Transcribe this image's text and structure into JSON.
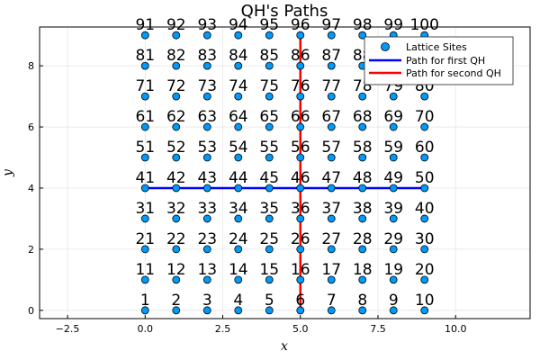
{
  "chart_data": {
    "type": "scatter",
    "title": "QH's Paths",
    "xlabel": "x",
    "ylabel": "y",
    "xlim": [
      -3.4,
      12.4
    ],
    "ylim": [
      -0.27,
      9.27
    ],
    "xticks": [
      -2.5,
      0.0,
      2.5,
      5.0,
      7.5,
      10.0
    ],
    "xtick_labels": [
      "−2.5",
      "0.0",
      "2.5",
      "5.0",
      "7.5",
      "10.0"
    ],
    "yticks": [
      0,
      2,
      4,
      6,
      8
    ],
    "ytick_labels": [
      "0",
      "2",
      "4",
      "6",
      "8"
    ],
    "grid": true,
    "legend_position": "top-right",
    "lattice": {
      "name": "Lattice Sites",
      "color": "#009AFA",
      "x_values": [
        0,
        1,
        2,
        3,
        4,
        5,
        6,
        7,
        8,
        9
      ],
      "y_values": [
        0,
        1,
        2,
        3,
        4,
        5,
        6,
        7,
        8,
        9
      ],
      "site_labels": [
        "1",
        "2",
        "3",
        "4",
        "5",
        "6",
        "7",
        "8",
        "9",
        "10",
        "11",
        "12",
        "13",
        "14",
        "15",
        "16",
        "17",
        "18",
        "19",
        "20",
        "21",
        "22",
        "23",
        "24",
        "25",
        "26",
        "27",
        "28",
        "29",
        "30",
        "31",
        "32",
        "33",
        "34",
        "35",
        "36",
        "37",
        "38",
        "39",
        "40",
        "41",
        "42",
        "43",
        "44",
        "45",
        "46",
        "47",
        "48",
        "49",
        "50",
        "51",
        "52",
        "53",
        "54",
        "55",
        "56",
        "57",
        "58",
        "59",
        "60",
        "61",
        "62",
        "63",
        "64",
        "65",
        "66",
        "67",
        "68",
        "69",
        "70",
        "71",
        "72",
        "73",
        "74",
        "75",
        "76",
        "77",
        "78",
        "79",
        "80",
        "81",
        "82",
        "83",
        "84",
        "85",
        "86",
        "87",
        "88",
        "89",
        "90",
        "91",
        "92",
        "93",
        "94",
        "95",
        "96",
        "97",
        "98",
        "99",
        "100"
      ]
    },
    "series": [
      {
        "name": "Path for first QH",
        "color": "#0000FF",
        "points": [
          [
            0,
            4
          ],
          [
            9,
            4
          ]
        ]
      },
      {
        "name": "Path for second QH",
        "color": "#FF0000",
        "points": [
          [
            5,
            0
          ],
          [
            5,
            9
          ]
        ]
      }
    ]
  }
}
